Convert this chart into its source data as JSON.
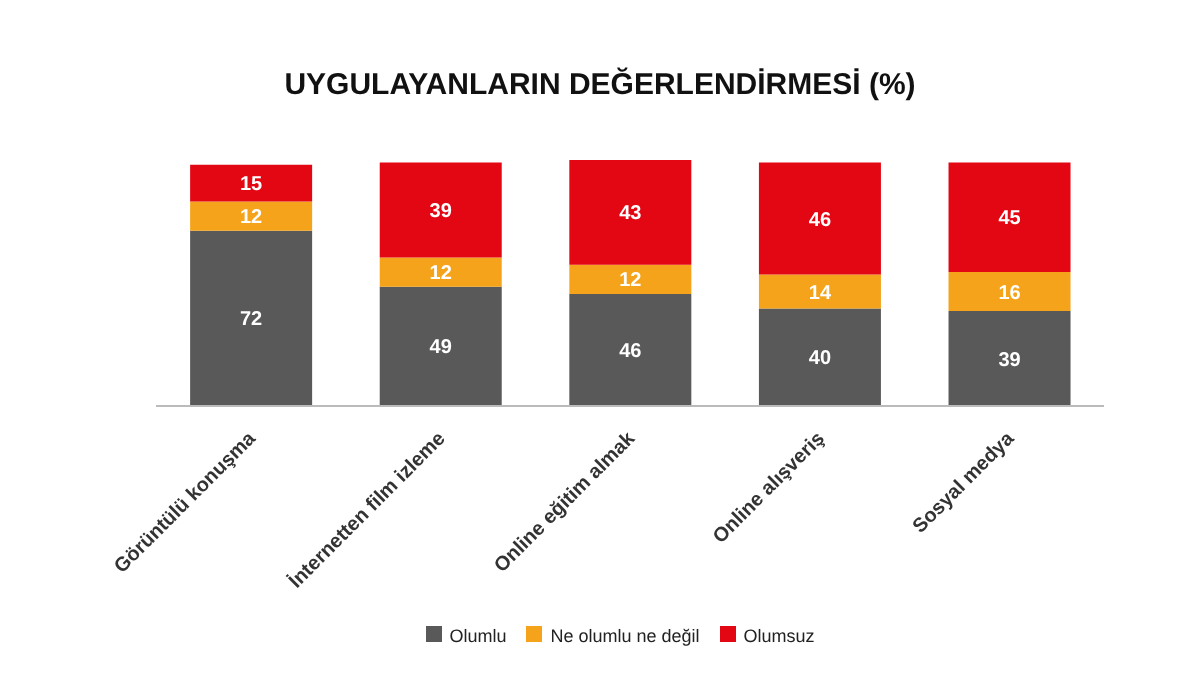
{
  "chart_data": {
    "type": "bar",
    "title": "UYGULAYANLARIN DEĞERLENDİRMESİ (%)",
    "categories": [
      "Görüntülü konuşma",
      "İnternetten film izleme",
      "Online eğitim almak",
      "Online alışveriş",
      "Sosyal medya"
    ],
    "stacked": true,
    "data_labels": true,
    "grid": false,
    "legend": "bottom",
    "series": [
      {
        "name": "Olumlu",
        "color": "#595959",
        "values": [
          72,
          49,
          46,
          40,
          39
        ]
      },
      {
        "name": "Ne olumlu ne değil",
        "color": "#f5a31a",
        "values": [
          12,
          12,
          12,
          14,
          16
        ]
      },
      {
        "name": "Olumsuz",
        "color": "#e30613",
        "values": [
          15,
          39,
          43,
          46,
          45
        ]
      }
    ]
  }
}
